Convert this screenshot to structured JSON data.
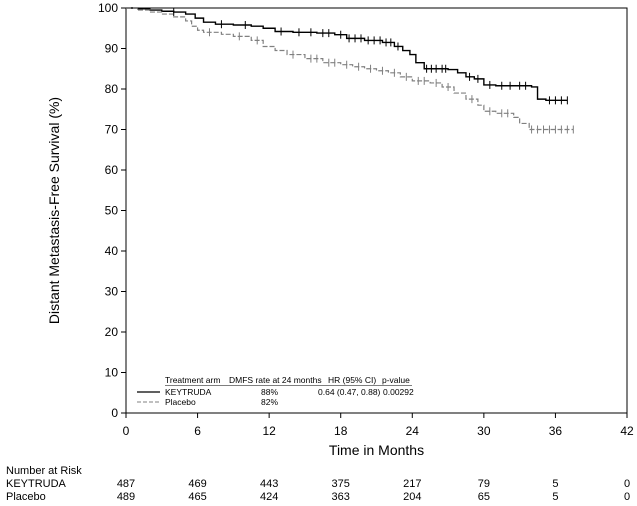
{
  "chart_data": {
    "type": "line",
    "title": "",
    "xlabel": "Time in Months",
    "ylabel": "Distant Metastasis-Free Survival (%)",
    "xlim": [
      0,
      42
    ],
    "ylim": [
      0,
      100
    ],
    "xticks": [
      0,
      6,
      12,
      18,
      24,
      30,
      36,
      42
    ],
    "yticks": [
      0,
      10,
      20,
      30,
      40,
      50,
      60,
      70,
      80,
      90,
      100
    ],
    "grid": false,
    "legend_position": "bottom-left",
    "series": [
      {
        "name": "KEYTRUDA",
        "color": "#000000",
        "style": "solid",
        "dmfs_rate": "88%",
        "hr": "0.64 (0.47, 0.88)",
        "p_value": "0.00292",
        "x": [
          0,
          1,
          2,
          3,
          4,
          5,
          5.8,
          6.5,
          7.5,
          9,
          10.5,
          11.5,
          12.5,
          14,
          16,
          17.5,
          18.5,
          20,
          21.5,
          22.5,
          23.2,
          23.8,
          24.3,
          25,
          27,
          27.8,
          28.5,
          29.2,
          30,
          31,
          34,
          34.5,
          35.2,
          37
        ],
        "y": [
          100,
          99.8,
          99.5,
          99.2,
          99,
          98.5,
          97.5,
          96.5,
          96,
          95.8,
          95.5,
          95,
          94.2,
          94,
          93.8,
          93.4,
          92.5,
          92,
          91.5,
          90.5,
          89.5,
          88.5,
          86.5,
          85,
          84.8,
          84,
          83,
          82.5,
          81,
          80.8,
          80.5,
          77.5,
          77.2,
          77.2
        ],
        "censor_x": [
          4,
          8,
          10,
          13,
          14.5,
          15.5,
          16.5,
          17,
          18,
          18.7,
          19.2,
          19.7,
          20.3,
          20.8,
          21.3,
          21.8,
          22.2,
          22.8,
          25.2,
          25.6,
          26,
          26.5,
          26.8,
          28.8,
          29.5,
          30.5,
          31.5,
          32.2,
          33,
          33.5,
          35.5,
          36,
          36.5,
          37
        ]
      },
      {
        "name": "Placebo",
        "color": "#808080",
        "style": "dashed",
        "dmfs_rate": "82%",
        "hr": "",
        "p_value": "",
        "x": [
          0,
          1,
          2,
          3,
          4,
          5,
          5.5,
          6,
          6.5,
          8,
          9,
          10.5,
          11.5,
          12.5,
          13.5,
          15,
          16.5,
          18,
          19,
          20,
          21,
          22,
          23,
          24,
          25.5,
          26.5,
          27.5,
          28.5,
          29.5,
          30,
          31,
          32.5,
          33,
          33.8,
          37.5
        ],
        "y": [
          100,
          99.5,
          99,
          98.5,
          97.8,
          96.8,
          95.5,
          94.5,
          94,
          93.5,
          93,
          92,
          90.5,
          89.5,
          88.5,
          87.5,
          86.5,
          86,
          85.5,
          85,
          84.5,
          84,
          83,
          82,
          81.5,
          80.5,
          79,
          77.5,
          76,
          74.5,
          74,
          73,
          71.5,
          70,
          70
        ],
        "censor_x": [
          7,
          9.5,
          11,
          14,
          15.5,
          16,
          17,
          17.5,
          18.5,
          19.5,
          20.5,
          21.5,
          22.5,
          23.5,
          24.5,
          25,
          26,
          27,
          29,
          30.5,
          31.5,
          32,
          34,
          34.5,
          35,
          35.5,
          36,
          36.5,
          37,
          37.5
        ]
      }
    ],
    "legend_headers": [
      "Treatment arm",
      "DMFS rate at 24 months",
      "HR (95% CI)",
      "p-value"
    ],
    "number_at_risk": {
      "title": "Number at Risk",
      "times": [
        0,
        6,
        12,
        18,
        24,
        30,
        36,
        42
      ],
      "rows": [
        {
          "label": "KEYTRUDA",
          "values": [
            "487",
            "469",
            "443",
            "375",
            "217",
            "79",
            "5",
            "0"
          ]
        },
        {
          "label": "Placebo",
          "values": [
            "489",
            "465",
            "424",
            "363",
            "204",
            "65",
            "5",
            "0"
          ]
        }
      ]
    }
  }
}
